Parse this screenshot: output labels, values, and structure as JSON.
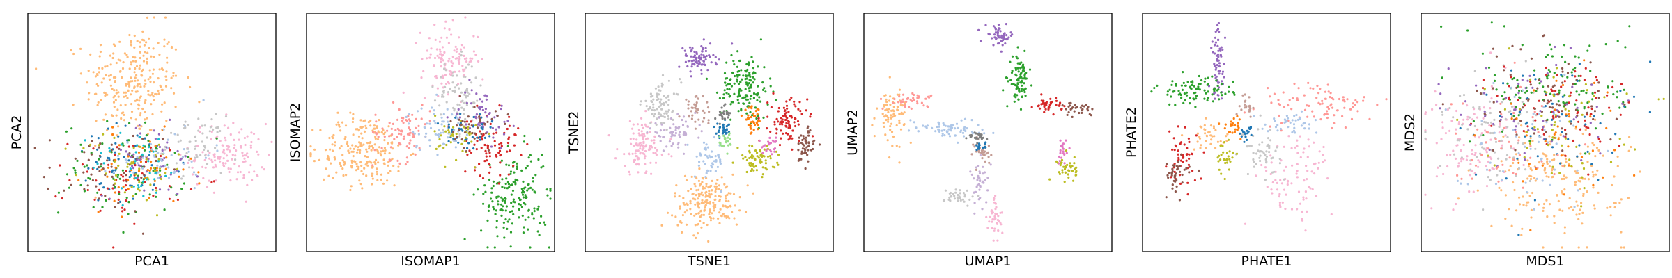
{
  "figure": {
    "background": "#ffffff"
  },
  "palette": [
    "#1f77b4",
    "#ff7f0e",
    "#2ca02c",
    "#d62728",
    "#9467bd",
    "#8c564b",
    "#e377c2",
    "#7f7f7f",
    "#bcbd22",
    "#17becf",
    "#aec7e8",
    "#ffbb78",
    "#98df8a",
    "#ff9896",
    "#c5b0d5",
    "#c49c94",
    "#f7b6d2",
    "#c7c7c7",
    "#dbdb8d",
    "#9edae5"
  ],
  "chart_data": [
    {
      "type": "scatter",
      "xlabel": "PCA1",
      "ylabel": "PCA2",
      "grid": false,
      "ticks": false,
      "clusters": [
        {
          "color": "#ffbb78",
          "cx": 0.42,
          "cy": 0.72,
          "sx": 0.1,
          "sy": 0.12,
          "n": 260
        },
        {
          "color": "#f7b6d2",
          "cx": 0.82,
          "cy": 0.4,
          "sx": 0.08,
          "sy": 0.07,
          "n": 130
        },
        {
          "color": "#c7c7c7",
          "cx": 0.68,
          "cy": 0.45,
          "sx": 0.06,
          "sy": 0.06,
          "n": 60
        },
        {
          "color": "#1f77b4",
          "cx": 0.4,
          "cy": 0.35,
          "sx": 0.12,
          "sy": 0.09,
          "n": 60
        },
        {
          "color": "#2ca02c",
          "cx": 0.38,
          "cy": 0.34,
          "sx": 0.13,
          "sy": 0.1,
          "n": 80
        },
        {
          "color": "#d62728",
          "cx": 0.4,
          "cy": 0.3,
          "sx": 0.12,
          "sy": 0.09,
          "n": 60
        },
        {
          "color": "#8c564b",
          "cx": 0.3,
          "cy": 0.33,
          "sx": 0.12,
          "sy": 0.09,
          "n": 60
        },
        {
          "color": "#9467bd",
          "cx": 0.5,
          "cy": 0.38,
          "sx": 0.1,
          "sy": 0.08,
          "n": 50
        },
        {
          "color": "#ff7f0e",
          "cx": 0.45,
          "cy": 0.33,
          "sx": 0.11,
          "sy": 0.08,
          "n": 50
        },
        {
          "color": "#bcbd22",
          "cx": 0.42,
          "cy": 0.35,
          "sx": 0.11,
          "sy": 0.08,
          "n": 50
        },
        {
          "color": "#aec7e8",
          "cx": 0.55,
          "cy": 0.4,
          "sx": 0.1,
          "sy": 0.07,
          "n": 50
        },
        {
          "color": "#17becf",
          "cx": 0.45,
          "cy": 0.36,
          "sx": 0.1,
          "sy": 0.08,
          "n": 40
        }
      ]
    },
    {
      "type": "scatter",
      "xlabel": "ISOMAP1",
      "ylabel": "ISOMAP2",
      "grid": false,
      "ticks": false,
      "clusters": [
        {
          "color": "#ffbb78",
          "cx": 0.22,
          "cy": 0.42,
          "sx": 0.09,
          "sy": 0.08,
          "n": 220
        },
        {
          "color": "#ff9896",
          "cx": 0.38,
          "cy": 0.5,
          "sx": 0.06,
          "sy": 0.06,
          "n": 80
        },
        {
          "color": "#f7b6d2",
          "cx": 0.58,
          "cy": 0.82,
          "sx": 0.06,
          "sy": 0.07,
          "n": 120
        },
        {
          "color": "#c7c7c7",
          "cx": 0.62,
          "cy": 0.65,
          "sx": 0.05,
          "sy": 0.08,
          "n": 80
        },
        {
          "color": "#2ca02c",
          "cx": 0.85,
          "cy": 0.22,
          "sx": 0.07,
          "sy": 0.1,
          "n": 180
        },
        {
          "color": "#d62728",
          "cx": 0.75,
          "cy": 0.45,
          "sx": 0.06,
          "sy": 0.07,
          "n": 80
        },
        {
          "color": "#9467bd",
          "cx": 0.72,
          "cy": 0.58,
          "sx": 0.05,
          "sy": 0.06,
          "n": 60
        },
        {
          "color": "#aec7e8",
          "cx": 0.52,
          "cy": 0.52,
          "sx": 0.06,
          "sy": 0.05,
          "n": 60
        },
        {
          "color": "#1f77b4",
          "cx": 0.65,
          "cy": 0.5,
          "sx": 0.06,
          "sy": 0.06,
          "n": 40
        },
        {
          "color": "#bcbd22",
          "cx": 0.62,
          "cy": 0.48,
          "sx": 0.05,
          "sy": 0.05,
          "n": 40
        },
        {
          "color": "#8c564b",
          "cx": 0.68,
          "cy": 0.52,
          "sx": 0.05,
          "sy": 0.05,
          "n": 40
        }
      ]
    },
    {
      "type": "scatter",
      "xlabel": "TSNE1",
      "ylabel": "TSNE2",
      "grid": false,
      "ticks": false,
      "clusters": [
        {
          "color": "#ffbb78",
          "cx": 0.49,
          "cy": 0.2,
          "sx": 0.07,
          "sy": 0.06,
          "n": 200
        },
        {
          "color": "#2ca02c",
          "cx": 0.65,
          "cy": 0.7,
          "sx": 0.05,
          "sy": 0.07,
          "n": 160
        },
        {
          "color": "#9467bd",
          "cx": 0.45,
          "cy": 0.82,
          "sx": 0.04,
          "sy": 0.03,
          "n": 80
        },
        {
          "color": "#d62728",
          "cx": 0.83,
          "cy": 0.55,
          "sx": 0.04,
          "sy": 0.05,
          "n": 90
        },
        {
          "color": "#8c564b",
          "cx": 0.9,
          "cy": 0.44,
          "sx": 0.02,
          "sy": 0.04,
          "n": 50
        },
        {
          "color": "#bcbd22",
          "cx": 0.7,
          "cy": 0.38,
          "sx": 0.04,
          "sy": 0.03,
          "n": 70
        },
        {
          "color": "#f7b6d2",
          "cx": 0.22,
          "cy": 0.44,
          "sx": 0.05,
          "sy": 0.06,
          "n": 110
        },
        {
          "color": "#c7c7c7",
          "cx": 0.3,
          "cy": 0.62,
          "sx": 0.04,
          "sy": 0.05,
          "n": 80
        },
        {
          "color": "#c5b0d5",
          "cx": 0.35,
          "cy": 0.5,
          "sx": 0.05,
          "sy": 0.03,
          "n": 60
        },
        {
          "color": "#c49c94",
          "cx": 0.45,
          "cy": 0.6,
          "sx": 0.03,
          "sy": 0.03,
          "n": 40
        },
        {
          "color": "#aec7e8",
          "cx": 0.5,
          "cy": 0.38,
          "sx": 0.03,
          "sy": 0.04,
          "n": 50
        },
        {
          "color": "#ff7f0e",
          "cx": 0.68,
          "cy": 0.55,
          "sx": 0.02,
          "sy": 0.03,
          "n": 40
        },
        {
          "color": "#1f77b4",
          "cx": 0.56,
          "cy": 0.51,
          "sx": 0.015,
          "sy": 0.015,
          "n": 30
        },
        {
          "color": "#7f7f7f",
          "cx": 0.56,
          "cy": 0.58,
          "sx": 0.015,
          "sy": 0.02,
          "n": 25
        },
        {
          "color": "#98df8a",
          "cx": 0.57,
          "cy": 0.46,
          "sx": 0.015,
          "sy": 0.02,
          "n": 25
        },
        {
          "color": "#e377c2",
          "cx": 0.76,
          "cy": 0.44,
          "sx": 0.02,
          "sy": 0.02,
          "n": 25
        }
      ]
    },
    {
      "type": "scatter",
      "xlabel": "UMAP1",
      "ylabel": "UMAP2",
      "grid": false,
      "ticks": false,
      "clusters": [
        {
          "color": "#9467bd",
          "cx": 0.55,
          "cy": 0.92,
          "sx": 0.03,
          "sy": 0.02,
          "n": 50
        },
        {
          "color": "#2ca02c",
          "cx": 0.63,
          "cy": 0.73,
          "sx": 0.02,
          "sy": 0.05,
          "n": 90
        },
        {
          "color": "#d62728",
          "cx": 0.75,
          "cy": 0.62,
          "sx": 0.03,
          "sy": 0.015,
          "n": 40
        },
        {
          "color": "#8c564b",
          "cx": 0.88,
          "cy": 0.6,
          "sx": 0.03,
          "sy": 0.015,
          "n": 30
        },
        {
          "color": "#ffbb78",
          "cx": 0.1,
          "cy": 0.58,
          "sx": 0.03,
          "sy": 0.06,
          "n": 80
        },
        {
          "color": "#ff9896",
          "cx": 0.18,
          "cy": 0.64,
          "sx": 0.05,
          "sy": 0.015,
          "n": 40
        },
        {
          "color": "#aec7e8",
          "cx": 0.32,
          "cy": 0.52,
          "sx": 0.08,
          "sy": 0.02,
          "n": 70
        },
        {
          "color": "#c7c7c7",
          "cx": 0.38,
          "cy": 0.22,
          "sx": 0.03,
          "sy": 0.02,
          "n": 35
        },
        {
          "color": "#c5b0d5",
          "cx": 0.47,
          "cy": 0.28,
          "sx": 0.02,
          "sy": 0.05,
          "n": 40
        },
        {
          "color": "#f7b6d2",
          "cx": 0.53,
          "cy": 0.12,
          "sx": 0.015,
          "sy": 0.05,
          "n": 40
        },
        {
          "color": "#c49c94",
          "cx": 0.48,
          "cy": 0.42,
          "sx": 0.02,
          "sy": 0.03,
          "n": 30
        },
        {
          "color": "#bcbd22",
          "cx": 0.83,
          "cy": 0.34,
          "sx": 0.02,
          "sy": 0.03,
          "n": 40
        },
        {
          "color": "#e377c2",
          "cx": 0.81,
          "cy": 0.42,
          "sx": 0.01,
          "sy": 0.03,
          "n": 20
        },
        {
          "color": "#7f7f7f",
          "cx": 0.46,
          "cy": 0.48,
          "sx": 0.02,
          "sy": 0.01,
          "n": 25
        },
        {
          "color": "#1f77b4",
          "cx": 0.47,
          "cy": 0.44,
          "sx": 0.01,
          "sy": 0.01,
          "n": 15
        }
      ]
    },
    {
      "type": "scatter",
      "xlabel": "PHATE1",
      "ylabel": "PHATE2",
      "grid": false,
      "ticks": false,
      "clusters": [
        {
          "color": "#9467bd",
          "cx": 0.3,
          "cy": 0.8,
          "sx": 0.015,
          "sy": 0.08,
          "n": 70
        },
        {
          "color": "#2ca02c",
          "cx": 0.2,
          "cy": 0.68,
          "sx": 0.08,
          "sy": 0.03,
          "n": 90
        },
        {
          "color": "#d62728",
          "cx": 0.15,
          "cy": 0.38,
          "sx": 0.03,
          "sy": 0.06,
          "n": 50
        },
        {
          "color": "#8c564b",
          "cx": 0.12,
          "cy": 0.32,
          "sx": 0.03,
          "sy": 0.04,
          "n": 40
        },
        {
          "color": "#ffbb78",
          "cx": 0.27,
          "cy": 0.48,
          "sx": 0.04,
          "sy": 0.03,
          "n": 40
        },
        {
          "color": "#ff9896",
          "cx": 0.72,
          "cy": 0.62,
          "sx": 0.12,
          "sy": 0.05,
          "n": 90
        },
        {
          "color": "#f7b6d2",
          "cx": 0.62,
          "cy": 0.3,
          "sx": 0.08,
          "sy": 0.1,
          "n": 90
        },
        {
          "color": "#c7c7c7",
          "cx": 0.48,
          "cy": 0.42,
          "sx": 0.04,
          "sy": 0.05,
          "n": 50
        },
        {
          "color": "#aec7e8",
          "cx": 0.6,
          "cy": 0.54,
          "sx": 0.06,
          "sy": 0.02,
          "n": 40
        },
        {
          "color": "#bcbd22",
          "cx": 0.33,
          "cy": 0.4,
          "sx": 0.02,
          "sy": 0.04,
          "n": 30
        },
        {
          "color": "#ff7f0e",
          "cx": 0.36,
          "cy": 0.53,
          "sx": 0.02,
          "sy": 0.02,
          "n": 25
        },
        {
          "color": "#1f77b4",
          "cx": 0.42,
          "cy": 0.5,
          "sx": 0.015,
          "sy": 0.015,
          "n": 20
        },
        {
          "color": "#c49c94",
          "cx": 0.42,
          "cy": 0.62,
          "sx": 0.02,
          "sy": 0.03,
          "n": 20
        }
      ]
    },
    {
      "type": "scatter",
      "xlabel": "MDS1",
      "ylabel": "MDS2",
      "grid": false,
      "ticks": false,
      "clusters": [
        {
          "color": "#ffbb78",
          "cx": 0.55,
          "cy": 0.3,
          "sx": 0.14,
          "sy": 0.12,
          "n": 200
        },
        {
          "color": "#f7b6d2",
          "cx": 0.2,
          "cy": 0.45,
          "sx": 0.1,
          "sy": 0.12,
          "n": 110
        },
        {
          "color": "#c7c7c7",
          "cx": 0.25,
          "cy": 0.5,
          "sx": 0.1,
          "sy": 0.12,
          "n": 90
        },
        {
          "color": "#2ca02c",
          "cx": 0.55,
          "cy": 0.7,
          "sx": 0.15,
          "sy": 0.12,
          "n": 120
        },
        {
          "color": "#d62728",
          "cx": 0.6,
          "cy": 0.6,
          "sx": 0.15,
          "sy": 0.12,
          "n": 80
        },
        {
          "color": "#8c564b",
          "cx": 0.5,
          "cy": 0.65,
          "sx": 0.15,
          "sy": 0.12,
          "n": 80
        },
        {
          "color": "#9467bd",
          "cx": 0.45,
          "cy": 0.6,
          "sx": 0.16,
          "sy": 0.13,
          "n": 70
        },
        {
          "color": "#1f77b4",
          "cx": 0.5,
          "cy": 0.55,
          "sx": 0.16,
          "sy": 0.14,
          "n": 60
        },
        {
          "color": "#bcbd22",
          "cx": 0.55,
          "cy": 0.55,
          "sx": 0.15,
          "sy": 0.13,
          "n": 60
        },
        {
          "color": "#aec7e8",
          "cx": 0.4,
          "cy": 0.45,
          "sx": 0.15,
          "sy": 0.13,
          "n": 50
        },
        {
          "color": "#ff9896",
          "cx": 0.35,
          "cy": 0.45,
          "sx": 0.12,
          "sy": 0.12,
          "n": 50
        },
        {
          "color": "#ff7f0e",
          "cx": 0.55,
          "cy": 0.5,
          "sx": 0.15,
          "sy": 0.14,
          "n": 40
        }
      ]
    }
  ]
}
